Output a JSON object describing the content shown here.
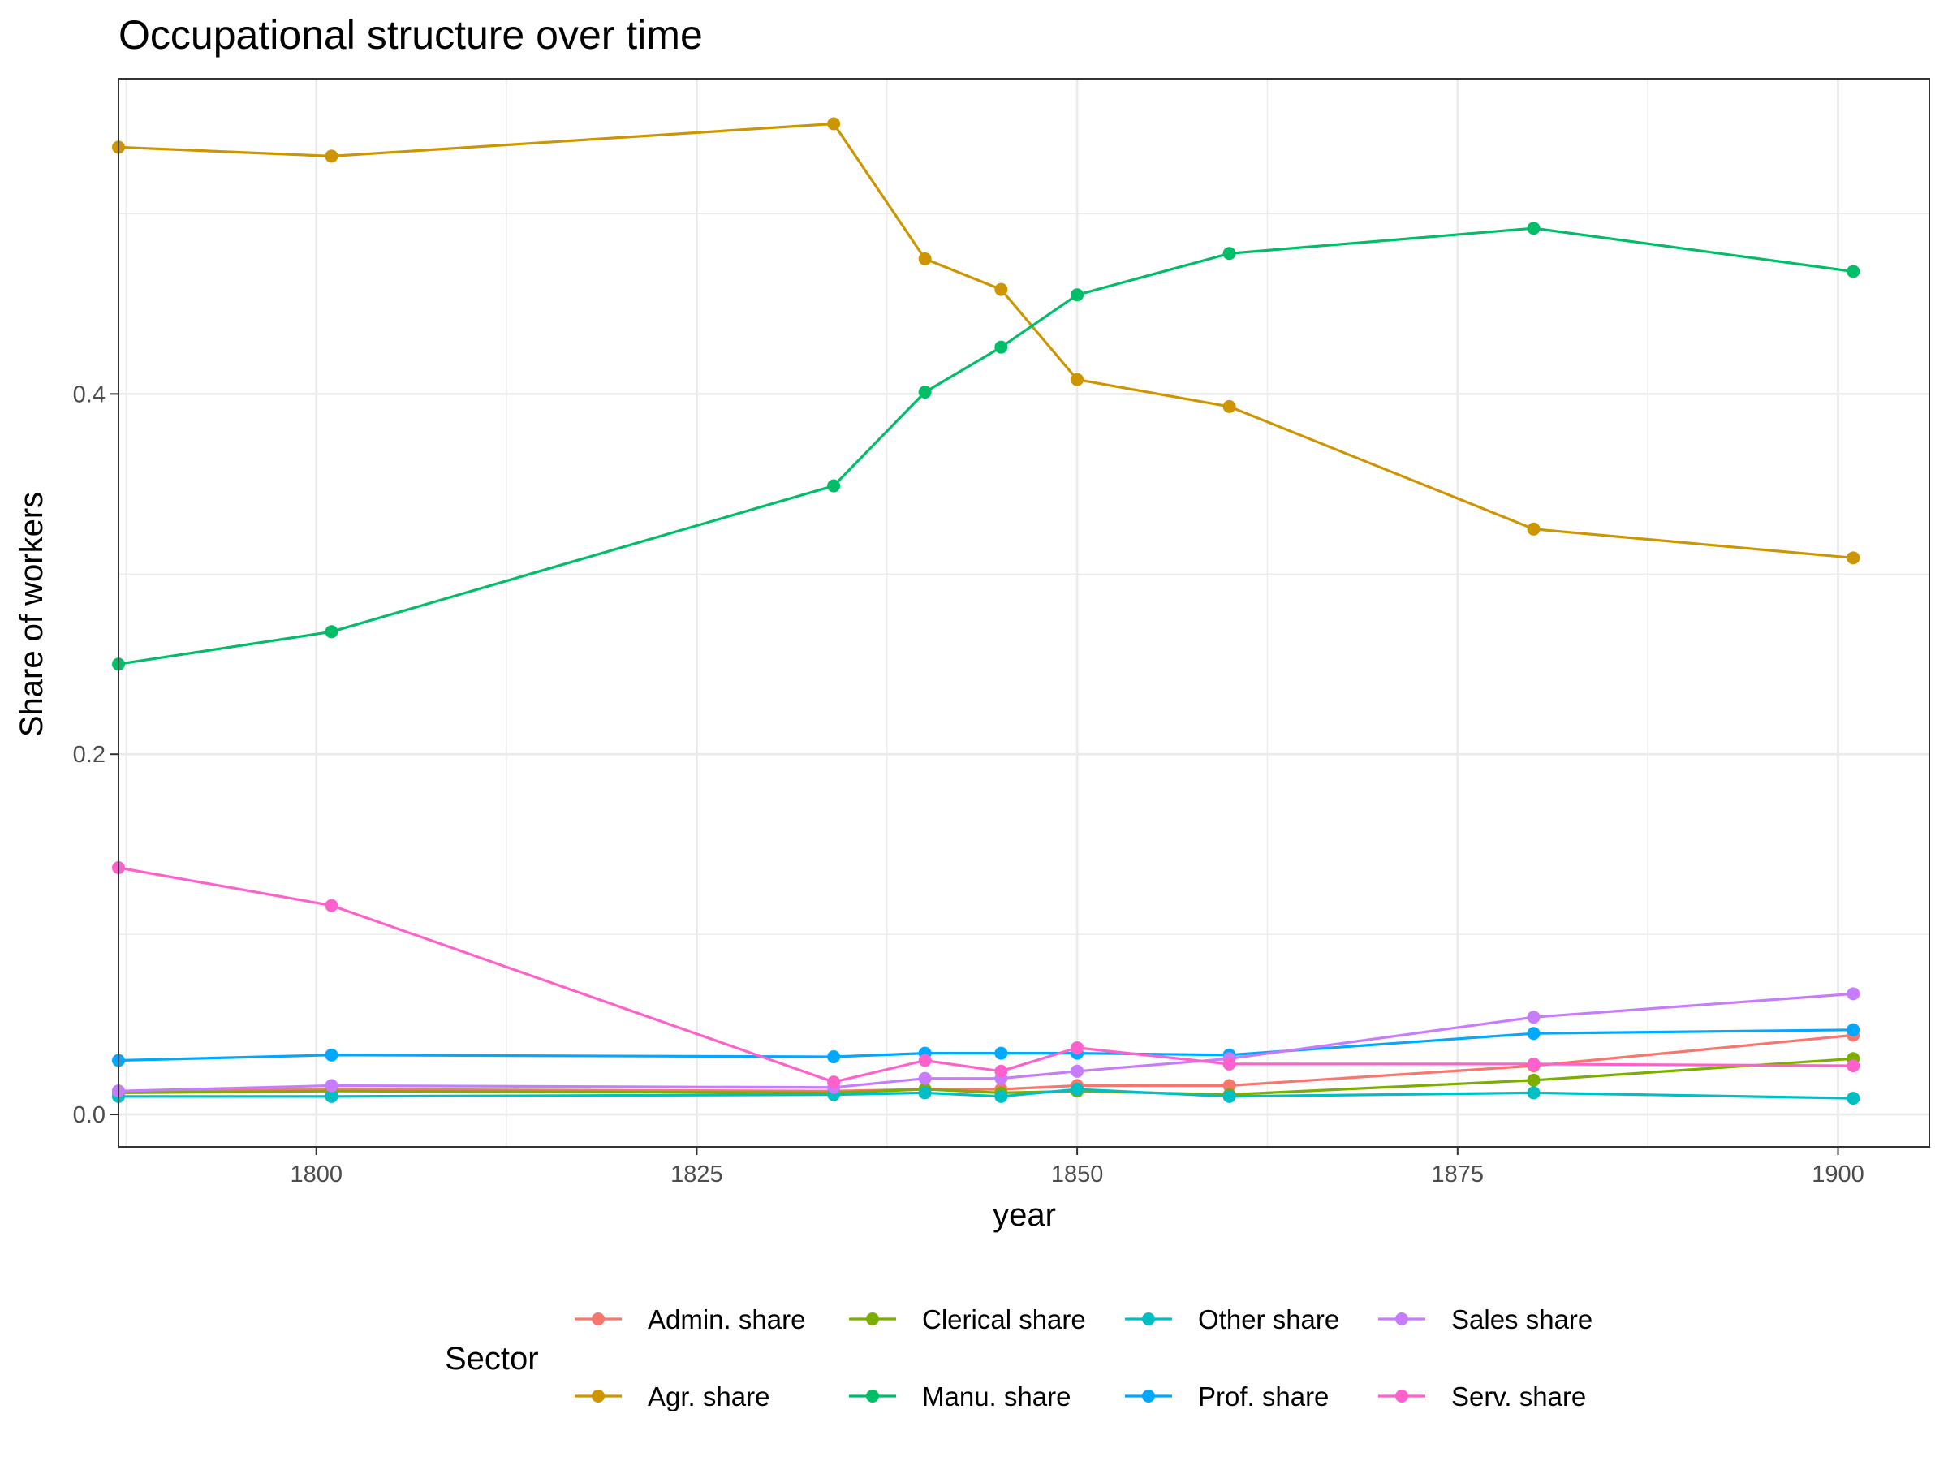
{
  "chart_data": {
    "type": "line",
    "title": "Occupational structure over time",
    "xlabel": "year",
    "ylabel": "Share of workers",
    "xlim": [
      1787,
      1906
    ],
    "ylim": [
      -0.018,
      0.575
    ],
    "x_ticks": [
      1800,
      1825,
      1850,
      1875,
      1900
    ],
    "y_ticks": [
      0.0,
      0.2,
      0.4
    ],
    "y_tick_labels": [
      "0.0",
      "0.2",
      "0.4"
    ],
    "grid": true,
    "legend": {
      "title": "Sector",
      "position": "bottom"
    },
    "x": [
      1787,
      1801,
      1834,
      1840,
      1845,
      1850,
      1860,
      1880,
      1901
    ],
    "series": [
      {
        "name": "Admin. share",
        "color": "#F8766D",
        "values": [
          0.013,
          0.014,
          0.013,
          0.014,
          0.014,
          0.016,
          0.016,
          0.027,
          0.044
        ]
      },
      {
        "name": "Agr. share",
        "color": "#CD9600",
        "values": [
          0.537,
          0.532,
          0.55,
          0.475,
          0.458,
          0.408,
          0.393,
          0.325,
          0.309
        ]
      },
      {
        "name": "Clerical share",
        "color": "#7CAE00",
        "values": [
          0.012,
          0.013,
          0.012,
          0.014,
          0.012,
          0.013,
          0.011,
          0.019,
          0.031
        ]
      },
      {
        "name": "Manu. share",
        "color": "#00BE67",
        "values": [
          0.25,
          0.268,
          0.349,
          0.401,
          0.426,
          0.455,
          0.478,
          0.492,
          0.468
        ]
      },
      {
        "name": "Other share",
        "color": "#00BFC4",
        "values": [
          0.01,
          0.01,
          0.011,
          0.012,
          0.01,
          0.014,
          0.01,
          0.012,
          0.009
        ]
      },
      {
        "name": "Prof. share",
        "color": "#00A9FF",
        "values": [
          0.03,
          0.033,
          0.032,
          0.034,
          0.034,
          0.034,
          0.033,
          0.045,
          0.047
        ]
      },
      {
        "name": "Sales share",
        "color": "#C77CFF",
        "values": [
          0.013,
          0.016,
          0.015,
          0.02,
          0.02,
          0.024,
          0.031,
          0.054,
          0.067
        ]
      },
      {
        "name": "Serv. share",
        "color": "#FF61CC",
        "values": [
          0.137,
          0.116,
          0.018,
          0.03,
          0.024,
          0.037,
          0.028,
          0.028,
          0.027
        ]
      }
    ]
  }
}
